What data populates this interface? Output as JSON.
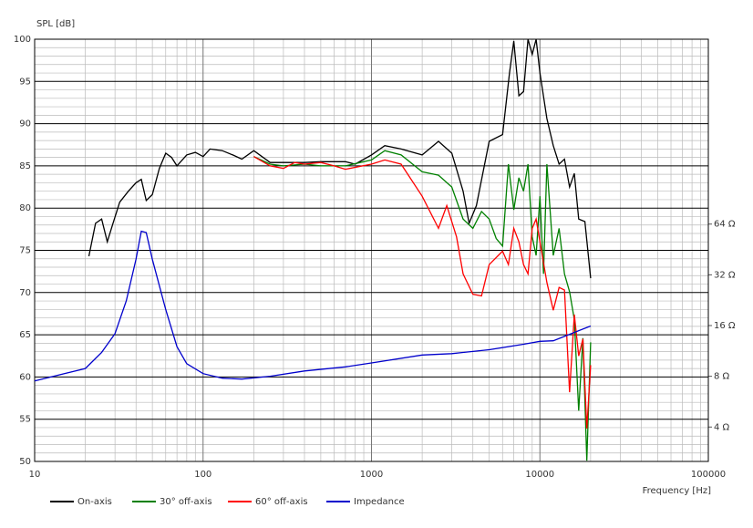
{
  "chart_data": {
    "type": "line",
    "y_label": "SPL [dB]",
    "x_label": "Frequency [Hz]",
    "xscale": "log",
    "y2scale": "log",
    "grid": true,
    "legend": "bottom",
    "xlim": [
      10,
      100000
    ],
    "xticks": [
      10,
      100,
      1000,
      10000,
      100000
    ],
    "ylim": [
      50,
      100
    ],
    "yticks": [
      50,
      55,
      60,
      65,
      70,
      75,
      80,
      85,
      90,
      95,
      100
    ],
    "y2lim": [
      2.5,
      800
    ],
    "y2ticks": [
      {
        "value": 4,
        "label": "4 Ω"
      },
      {
        "value": 8,
        "label": "8 Ω"
      },
      {
        "value": 16,
        "label": "16 Ω"
      },
      {
        "value": 32,
        "label": "32 Ω"
      },
      {
        "value": 64,
        "label": "64 Ω"
      }
    ],
    "series": [
      {
        "name": "On-axis",
        "color": "#000000",
        "x": [
          21,
          23,
          25,
          27,
          29,
          32,
          36,
          40,
          43,
          46,
          50,
          55,
          60,
          65,
          70,
          80,
          90,
          100,
          110,
          130,
          150,
          170,
          200,
          250,
          300,
          400,
          500,
          700,
          800,
          1000,
          1200,
          1500,
          2000,
          2500,
          3000,
          3500,
          3800,
          4200,
          5000,
          6000,
          6600,
          7000,
          7500,
          8000,
          8500,
          9000,
          9500,
          10000,
          11000,
          12000,
          13000,
          14000,
          15000,
          16000,
          17000,
          18500,
          20000
        ],
        "values": [
          74.3,
          78.2,
          78.7,
          76,
          78,
          80.7,
          82,
          83,
          83.4,
          80.9,
          81.6,
          84.7,
          86.5,
          86,
          85,
          86.3,
          86.6,
          86.1,
          87,
          86.8,
          86.3,
          85.8,
          86.8,
          85.4,
          85.4,
          85.4,
          85.5,
          85.5,
          85.2,
          86.3,
          87.4,
          87,
          86.3,
          87.9,
          86.5,
          82,
          78.2,
          80.3,
          87.9,
          88.7,
          96,
          99.8,
          93.3,
          93.8,
          100,
          98.2,
          100,
          96,
          90.6,
          87.4,
          85.2,
          85.8,
          82.5,
          84.1,
          78.7,
          78.4,
          71.7
        ]
      },
      {
        "name": "30° off-axis",
        "color": "#008000",
        "x": [
          200,
          250,
          300,
          400,
          500,
          700,
          1000,
          1200,
          1500,
          2000,
          2500,
          3000,
          3500,
          4000,
          4500,
          5000,
          5500,
          6000,
          6500,
          7000,
          7500,
          8000,
          8500,
          9000,
          9500,
          10000,
          10500,
          11000,
          12000,
          13000,
          14000,
          15000,
          16000,
          17000,
          18000,
          19000,
          20000
        ],
        "values": [
          86.1,
          85.2,
          85,
          85.2,
          85,
          85,
          85.7,
          86.8,
          86.3,
          84.3,
          83.9,
          82.5,
          78.7,
          77.6,
          79.6,
          78.7,
          76.4,
          75.5,
          85.2,
          79.8,
          83.6,
          82,
          85.2,
          76.6,
          74.4,
          81.4,
          72.2,
          85.2,
          74.4,
          77.6,
          72.2,
          70.1,
          66.8,
          56,
          64.6,
          50.1,
          64.1
        ]
      },
      {
        "name": "60° off-axis",
        "color": "#ff0000",
        "x": [
          200,
          250,
          300,
          350,
          400,
          500,
          600,
          700,
          1000,
          1200,
          1500,
          2000,
          2500,
          2800,
          3200,
          3500,
          4000,
          4500,
          5000,
          6000,
          6500,
          7000,
          7500,
          8000,
          8500,
          9000,
          9500,
          10000,
          11000,
          12000,
          13000,
          14000,
          15000,
          16000,
          17000,
          18000,
          19000,
          20000
        ],
        "values": [
          86.1,
          85,
          84.7,
          85.4,
          85.2,
          85.4,
          85,
          84.6,
          85.2,
          85.7,
          85.2,
          81.4,
          77.6,
          80.3,
          76.6,
          72.2,
          69.8,
          69.6,
          73.3,
          74.9,
          73.3,
          77.6,
          76,
          73.3,
          72.2,
          77.6,
          78.7,
          76,
          71.2,
          67.9,
          70.6,
          70.3,
          58.2,
          67.4,
          62.5,
          64.5,
          53.9,
          61.4
        ]
      },
      {
        "name": "Impedance",
        "color": "#0000cc",
        "axis": "y2",
        "x": [
          10,
          15,
          20,
          25,
          30,
          35,
          40,
          43,
          46,
          50,
          60,
          70,
          80,
          100,
          130,
          170,
          250,
          400,
          700,
          1000,
          2000,
          3000,
          5000,
          8000,
          10000,
          12000,
          15000,
          20000
        ],
        "values": [
          7.5,
          8.3,
          8.9,
          11.1,
          14.3,
          22.4,
          39.6,
          58,
          57,
          39.6,
          19.9,
          12,
          9.5,
          8.3,
          7.8,
          7.7,
          8,
          8.6,
          9.1,
          9.6,
          10.7,
          10.9,
          11.5,
          12.4,
          12.9,
          13,
          14.2,
          15.9
        ]
      }
    ]
  }
}
